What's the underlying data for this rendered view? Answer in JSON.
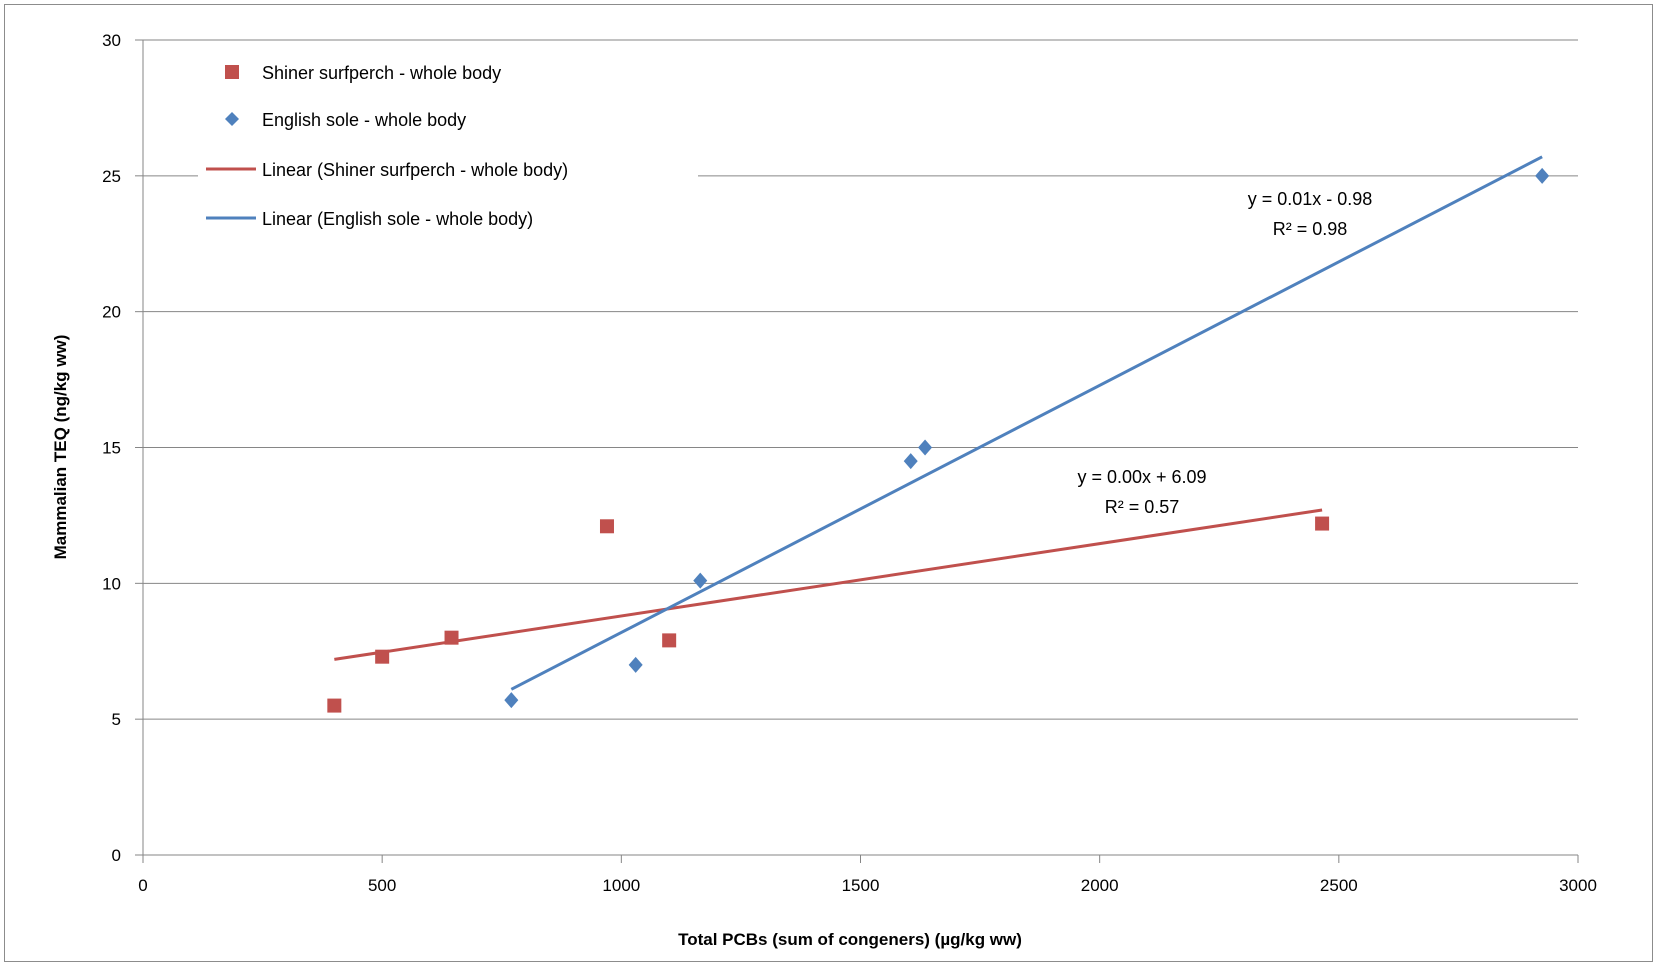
{
  "chart_data": {
    "type": "scatter",
    "title": "",
    "xlabel": "Total PCBs (sum of congeners) (µg/kg ww)",
    "ylabel": "Mammalian TEQ (ng/kg ww)",
    "xlim": [
      0,
      3000
    ],
    "ylim": [
      0,
      30
    ],
    "x_ticks": [
      0,
      500,
      1000,
      1500,
      2000,
      2500,
      3000
    ],
    "y_ticks": [
      0,
      5,
      10,
      15,
      20,
      25,
      30
    ],
    "x_tick_labels": [
      "0",
      "500",
      "1000",
      "1500",
      "2000",
      "2500",
      "3000"
    ],
    "y_tick_labels": [
      "0",
      "5",
      "10",
      "15",
      "20",
      "25",
      "30"
    ],
    "grid": "horizontal",
    "legend_position": "top-left",
    "series": [
      {
        "name": "Shiner surfperch - whole body",
        "marker": "square",
        "color": "#c0504d",
        "points": [
          [
            400,
            5.5
          ],
          [
            500,
            7.3
          ],
          [
            645,
            8.0
          ],
          [
            970,
            12.1
          ],
          [
            1100,
            7.9
          ],
          [
            2465,
            12.2
          ]
        ]
      },
      {
        "name": "English sole - whole body",
        "marker": "diamond",
        "color": "#4f81bd",
        "points": [
          [
            770,
            5.7
          ],
          [
            1030,
            7.0
          ],
          [
            1165,
            10.1
          ],
          [
            1605,
            14.5
          ],
          [
            1635,
            15.0
          ],
          [
            2925,
            25.0
          ]
        ]
      }
    ],
    "trendlines": [
      {
        "name": "Linear (Shiner surfperch - whole body)",
        "color": "#c0504d",
        "x_range": [
          400,
          2465
        ],
        "y_range": [
          7.2,
          12.7
        ],
        "equation": "y = 0.00x + 6.09",
        "r_squared": "R² = 0.57"
      },
      {
        "name": "Linear (English sole - whole body)",
        "color": "#4f81bd",
        "x_range": [
          770,
          2925
        ],
        "y_range": [
          6.1,
          25.7
        ],
        "equation": "y = 0.01x - 0.98",
        "r_squared": "R² = 0.98"
      }
    ]
  }
}
